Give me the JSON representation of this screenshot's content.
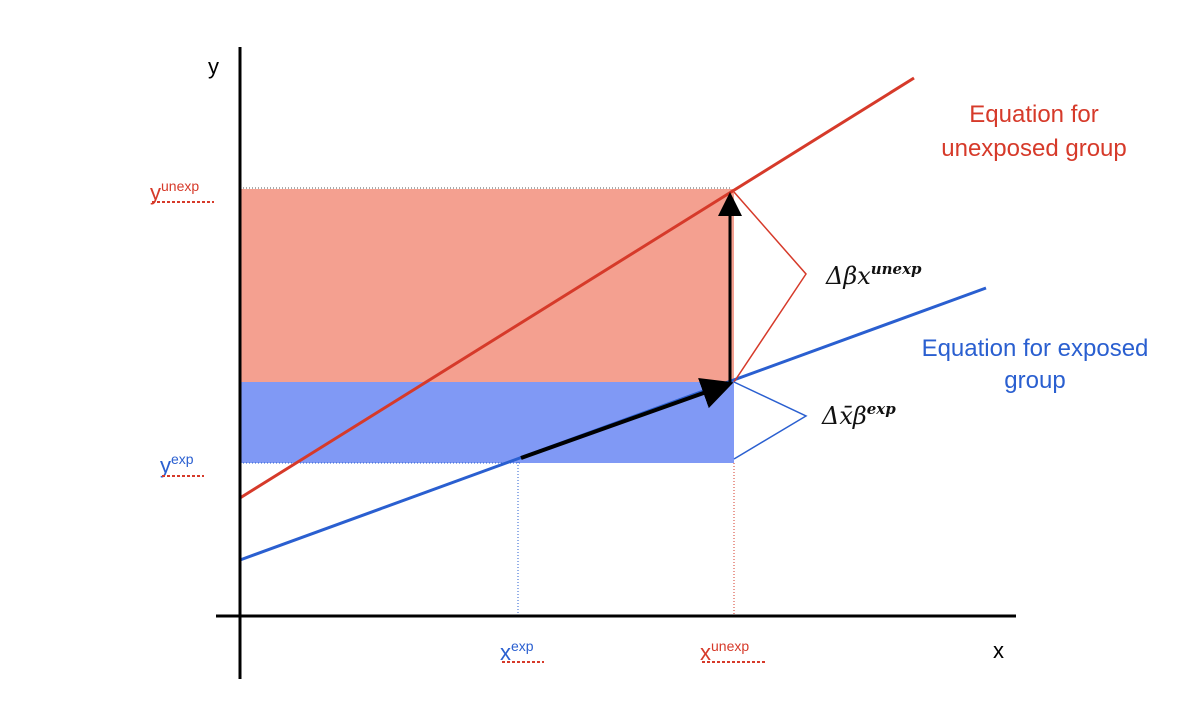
{
  "axes": {
    "x_label": "x",
    "y_label": "y"
  },
  "labels": {
    "y_unexp": {
      "base": "y",
      "sup": "unexp"
    },
    "y_exp": {
      "base": "y",
      "sup": "exp"
    },
    "x_exp": {
      "base": "x",
      "sup": "exp"
    },
    "x_unexp": {
      "base": "x",
      "sup": "unexp"
    }
  },
  "legend": {
    "unexposed_line1": "Equation for",
    "unexposed_line2": "unexposed group",
    "exposed_line1": "Equation for exposed",
    "exposed_line2": "group"
  },
  "annotations": {
    "delta_beta": {
      "base": "Δβx",
      "sup": "unexp"
    },
    "delta_xbar": {
      "base": "Δx̄β",
      "sup": "exp"
    }
  },
  "colors": {
    "unexposed": "#d63a2a",
    "unexposed_fill": "#f4a090",
    "exposed": "#2a5fd0",
    "exposed_fill": "#8099f5",
    "axis": "#000000"
  }
}
